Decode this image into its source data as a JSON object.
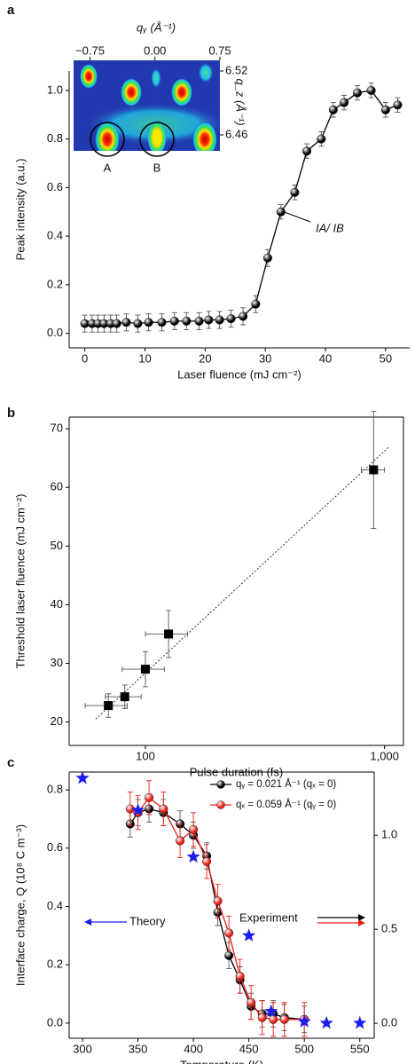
{
  "panels": [
    "a",
    "b",
    "c"
  ],
  "chart_data": [
    {
      "type": "line",
      "x_label": "Laser fluence (mJ cm⁻²)",
      "y_label": "Peak intensity (a.u.)",
      "xlim": [
        -2.6,
        54
      ],
      "ylim": [
        -0.06,
        1.08
      ],
      "xticks": [
        0,
        10,
        20,
        30,
        40,
        50
      ],
      "yticks": [
        {
          "value": 0,
          "label": "0.0"
        },
        {
          "value": 0.2,
          "label": "0.2"
        },
        {
          "value": 0.4,
          "label": "0.4"
        },
        {
          "value": 0.6,
          "label": "0.6"
        },
        {
          "value": 0.8,
          "label": "0.8"
        },
        {
          "value": 1,
          "label": "1.0"
        }
      ],
      "series": [
        {
          "color": "#000000",
          "marker": "sphere",
          "line": true,
          "x": [
            0,
            1.2,
            2.2,
            3.2,
            4.3,
            5.3,
            6.9,
            8.8,
            10.6,
            12.8,
            14.9,
            16.9,
            19,
            20.6,
            22.4,
            24.3,
            26.3,
            28.4,
            30.4,
            32.6,
            34.9,
            36.9,
            39.3,
            41.3,
            43.1,
            45.3,
            47.6,
            50,
            52
          ],
          "values": [
            0.04,
            0.04,
            0.04,
            0.04,
            0.04,
            0.04,
            0.045,
            0.04,
            0.045,
            0.045,
            0.05,
            0.05,
            0.05,
            0.055,
            0.055,
            0.06,
            0.07,
            0.12,
            0.31,
            0.5,
            0.58,
            0.75,
            0.8,
            0.92,
            0.95,
            0.99,
            1.0,
            0.92,
            0.94
          ],
          "errors": [
            0.035,
            0.035,
            0.035,
            0.035,
            0.035,
            0.035,
            0.035,
            0.035,
            0.035,
            0.035,
            0.035,
            0.035,
            0.035,
            0.035,
            0.035,
            0.035,
            0.035,
            0.035,
            0.035,
            0.03,
            0.03,
            0.03,
            0.03,
            0.03,
            0.03,
            0.03,
            0.03,
            0.03,
            0.03
          ]
        }
      ],
      "annotation": "IA/ IB",
      "inset": {
        "x_label": "qᵧ (Å⁻¹)",
        "y_label": "q_z (Å⁻¹)",
        "xlim": [
          -0.94,
          0.75
        ],
        "ylim": [
          6.445,
          6.53
        ],
        "xticks": [
          {
            "value": -0.75,
            "label": "−0.75"
          },
          {
            "value": 0,
            "label": "0.00"
          },
          0.75
        ],
        "yticks": [
          6.52,
          6.46
        ],
        "labels": [
          "A",
          "B"
        ]
      }
    },
    {
      "type": "scatter",
      "x_label": "Pulse duration (fs)",
      "y_label": "Threshold laser fluence (mJ cm⁻²)",
      "xscale": "log",
      "xlim": [
        48,
        1200
      ],
      "ylim": [
        16,
        72
      ],
      "xticks": [
        100,
        {
          "value": 1000,
          "label": "1,000"
        }
      ],
      "yticks": [
        20,
        30,
        40,
        50,
        60,
        70
      ],
      "series": [
        {
          "color": "#000000",
          "marker": "square",
          "line": false,
          "x": [
            70,
            82,
            100,
            125,
            900
          ],
          "values": [
            22.8,
            24.3,
            29,
            35,
            63
          ],
          "xerr": [
            14,
            14,
            20,
            25,
            100
          ],
          "errors": [
            2,
            2,
            3,
            4,
            10
          ]
        }
      ],
      "fit_line": {
        "x": [
          62,
          1050
        ],
        "y": [
          20.5,
          67
        ]
      }
    },
    {
      "type": "line",
      "x_label": "Temperature (K)",
      "y_label": "Interface charge, Q (10⁸ C m⁻³)",
      "xlim": [
        288,
        563
      ],
      "ylim": [
        -0.052,
        0.861
      ],
      "y2lim": [
        -0.08,
        1.336
      ],
      "xticks": [
        300,
        350,
        400,
        450,
        500,
        550
      ],
      "yticks": [
        {
          "value": 0,
          "label": "0.0"
        },
        {
          "value": 0.2,
          "label": "0.2"
        },
        {
          "value": 0.4,
          "label": "0.4"
        },
        {
          "value": 0.6,
          "label": "0.6"
        },
        {
          "value": 0.8,
          "label": "0.8"
        }
      ],
      "y2ticks": [
        {
          "value": 0,
          "label": "0.0"
        },
        0.5,
        {
          "value": 1,
          "label": "1.0"
        }
      ],
      "legend": "upper right",
      "series": [
        {
          "name": "qᵧ = 0.021 Å⁻¹ (qₓ = 0)",
          "color": "#000000",
          "marker": "sphere",
          "line": true,
          "axis": "y2",
          "x": [
            343,
            350,
            360,
            373,
            388,
            400,
            412,
            422,
            432,
            442,
            452,
            462,
            472,
            482,
            500
          ],
          "values": [
            1.06,
            1.12,
            1.14,
            1.12,
            1.06,
            1.0,
            0.89,
            0.59,
            0.36,
            0.23,
            0.09,
            0.05,
            0.05,
            0.03,
            0.02
          ],
          "errors": [
            0.07,
            0.07,
            0.07,
            0.07,
            0.07,
            0.07,
            0.07,
            0.07,
            0.07,
            0.07,
            0.07,
            0.07,
            0.07,
            0.07,
            0.07
          ]
        },
        {
          "name": "qₓ = 0.059 Å⁻¹ (qᵧ = 0)",
          "color": "#e8201a",
          "marker": "sphere",
          "line": true,
          "axis": "y2",
          "x": [
            343,
            350,
            360,
            373,
            388,
            400,
            412,
            422,
            432,
            442,
            452,
            462,
            472,
            482,
            500
          ],
          "values": [
            1.14,
            1.12,
            1.2,
            1.14,
            0.97,
            1.03,
            0.86,
            0.65,
            0.48,
            0.25,
            0.11,
            0.03,
            0.02,
            0.02,
            0.02
          ],
          "errors": [
            0.09,
            0.09,
            0.09,
            0.09,
            0.09,
            0.09,
            0.09,
            0.09,
            0.09,
            0.09,
            0.09,
            0.09,
            0.09,
            0.09,
            0.09
          ]
        },
        {
          "color": "#1c1cf0",
          "marker": "star",
          "line": false,
          "x": [
            300,
            350,
            400,
            450,
            470,
            500,
            520,
            550
          ],
          "values": [
            0.84,
            0.73,
            0.57,
            0.3,
            0.04,
            0.005,
            0.0,
            0.0
          ]
        }
      ],
      "annotations": [
        {
          "text": "Theory",
          "color": "#1c1cf0"
        },
        {
          "text": "Experiment"
        }
      ]
    }
  ]
}
